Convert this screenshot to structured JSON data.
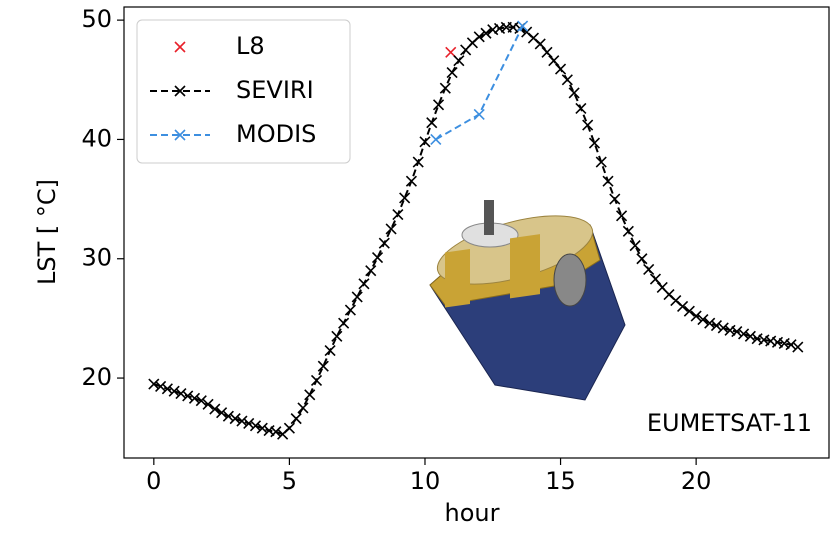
{
  "chart_data": {
    "type": "line",
    "x_label": "hour",
    "y_label": "LST [ °C]",
    "annotation": "EUMETSAT-11",
    "xlim": [
      -1.1,
      24.9
    ],
    "ylim": [
      13.3,
      51.1
    ],
    "xticks": [
      0,
      5,
      10,
      15,
      20
    ],
    "yticks": [
      20,
      30,
      40,
      50
    ],
    "legend": "upper left",
    "series": [
      {
        "name": "L8",
        "color": "#e8202a",
        "line": false,
        "x": [
          10.95
        ],
        "values": [
          47.3
        ]
      },
      {
        "name": "SEVIRI",
        "color": "#000000",
        "line": true,
        "x": [
          0,
          0.25,
          0.5,
          0.75,
          1,
          1.25,
          1.5,
          1.75,
          2,
          2.25,
          2.5,
          2.75,
          3,
          3.25,
          3.5,
          3.75,
          4,
          4.25,
          4.5,
          4.75,
          5,
          5.25,
          5.5,
          5.75,
          6,
          6.25,
          6.5,
          6.75,
          7,
          7.25,
          7.5,
          7.75,
          8,
          8.25,
          8.5,
          8.75,
          9,
          9.25,
          9.5,
          9.75,
          10,
          10.25,
          10.5,
          10.75,
          11,
          11.25,
          11.5,
          11.75,
          12,
          12.25,
          12.5,
          12.75,
          13,
          13.25,
          13.5,
          13.75,
          14,
          14.25,
          14.5,
          14.75,
          15,
          15.25,
          15.5,
          15.75,
          16,
          16.25,
          16.5,
          16.75,
          17,
          17.25,
          17.5,
          17.75,
          18,
          18.25,
          18.5,
          18.75,
          19,
          19.25,
          19.5,
          19.75,
          20,
          20.25,
          20.5,
          20.75,
          21,
          21.25,
          21.5,
          21.75,
          22,
          22.25,
          22.5,
          22.75,
          23,
          23.25,
          23.5,
          23.75
        ],
        "values": [
          19.5,
          19.3,
          19.1,
          18.9,
          18.7,
          18.5,
          18.3,
          18.1,
          17.8,
          17.4,
          17.1,
          16.8,
          16.6,
          16.4,
          16.2,
          16.0,
          15.8,
          15.6,
          15.5,
          15.3,
          15.8,
          16.6,
          17.5,
          18.6,
          19.8,
          21.0,
          22.3,
          23.5,
          24.6,
          25.7,
          26.8,
          27.9,
          29.0,
          30.1,
          31.3,
          32.5,
          33.7,
          35.1,
          36.5,
          38.1,
          39.8,
          41.4,
          42.9,
          44.3,
          45.6,
          46.6,
          47.5,
          48.1,
          48.6,
          48.9,
          49.2,
          49.3,
          49.4,
          49.4,
          49.3,
          49.0,
          48.5,
          48.0,
          47.3,
          46.6,
          45.9,
          45.0,
          43.9,
          42.6,
          41.2,
          39.7,
          38.1,
          36.5,
          35.0,
          33.6,
          32.3,
          31.1,
          30.0,
          29.1,
          28.3,
          27.6,
          27.0,
          26.5,
          26.0,
          25.6,
          25.2,
          24.9,
          24.6,
          24.4,
          24.2,
          24.0,
          23.9,
          23.7,
          23.5,
          23.3,
          23.2,
          23.1,
          23.0,
          22.9,
          22.8,
          22.6
        ]
      },
      {
        "name": "MODIS",
        "color": "#3d8fe0",
        "line": true,
        "x": [
          10.4,
          12.0,
          13.6
        ],
        "values": [
          40.0,
          42.1,
          49.5
        ]
      }
    ]
  }
}
